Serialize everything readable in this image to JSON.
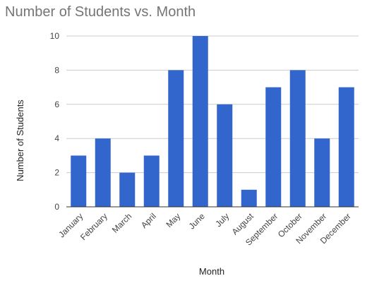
{
  "chart_data": {
    "type": "bar",
    "title": "Number of Students vs. Month",
    "xlabel": "Month",
    "ylabel": "Number of Students",
    "categories": [
      "January",
      "February",
      "March",
      "April",
      "May",
      "June",
      "July",
      "August",
      "September",
      "October",
      "November",
      "December"
    ],
    "series": [
      {
        "values": [
          3,
          4,
          2,
          3,
          8,
          10,
          6,
          1,
          7,
          8,
          4,
          7
        ]
      }
    ],
    "ylim": [
      0,
      10
    ],
    "yticks": [
      0,
      2,
      4,
      6,
      8,
      10
    ],
    "grid": true,
    "legend": "none",
    "colors": {
      "bar": "#3366cc",
      "title": "#757575",
      "axis_text": "#444444",
      "gridline": "#cccccc",
      "baseline": "#333333"
    }
  }
}
